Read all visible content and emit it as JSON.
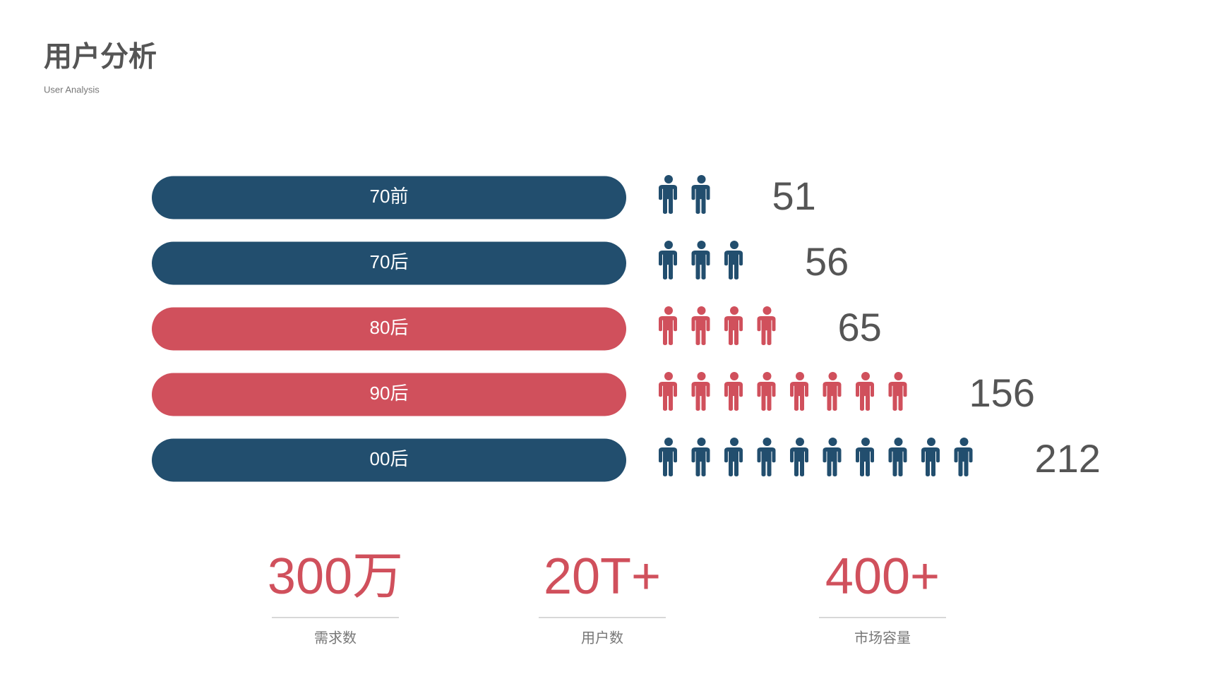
{
  "header": {
    "title": "用户分析",
    "subtitle": "User Analysis"
  },
  "rows": [
    {
      "label": "70前",
      "value": 51,
      "icons": 2,
      "color": "#224e6e"
    },
    {
      "label": "70后",
      "value": 56,
      "icons": 3,
      "color": "#224e6e"
    },
    {
      "label": "80后",
      "value": 65,
      "icons": 4,
      "color": "#d0505c"
    },
    {
      "label": "90后",
      "value": 156,
      "icons": 8,
      "color": "#d0505c"
    },
    {
      "label": "00后",
      "value": 212,
      "icons": 10,
      "color": "#224e6e"
    }
  ],
  "stats": [
    {
      "value": "300万",
      "label": "需求数"
    },
    {
      "value": "20T+",
      "label": "用户数"
    },
    {
      "value": "400+",
      "label": "市场容量"
    }
  ]
}
